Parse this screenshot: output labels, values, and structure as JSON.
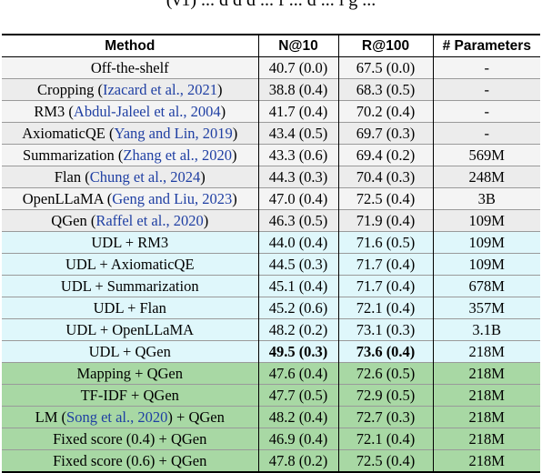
{
  "fragment": "(v1) ... d d d    ...    f       ...   d   ... l   g  ...",
  "table": {
    "headers": [
      "Method",
      "N@10",
      "R@100",
      "# Parameters"
    ],
    "rows": [
      {
        "group": "base",
        "method": "Off-the-shelf",
        "cite": "",
        "suffix": "",
        "n10": "40.7 (0.0)",
        "r100": "67.5 (0.0)",
        "params": "-"
      },
      {
        "group": "base",
        "method": "Cropping ",
        "cite": "Izacard et al., 2021",
        "suffix": "",
        "n10": "38.8 (0.4)",
        "r100": "68.3 (0.5)",
        "params": "-"
      },
      {
        "group": "base",
        "method": "RM3 ",
        "cite": "Abdul-Jaleel et al., 2004",
        "suffix": "",
        "n10": "41.7 (0.4)",
        "r100": "70.2 (0.4)",
        "params": "-"
      },
      {
        "group": "base",
        "method": "AxiomaticQE ",
        "cite": "Yang and Lin, 2019",
        "suffix": "",
        "n10": "43.4 (0.5)",
        "r100": "69.7 (0.3)",
        "params": "-"
      },
      {
        "group": "base",
        "method": "Summarization ",
        "cite": "Zhang et al., 2020",
        "suffix": "",
        "n10": "43.3 (0.6)",
        "r100": "69.4 (0.2)",
        "params": "569M"
      },
      {
        "group": "base",
        "method": "Flan ",
        "cite": "Chung et al., 2024",
        "suffix": "",
        "n10": "44.3 (0.3)",
        "r100": "70.4 (0.3)",
        "params": "248M"
      },
      {
        "group": "base",
        "method": "OpenLLaMA ",
        "cite": "Geng and Liu, 2023",
        "suffix": "",
        "n10": "47.0 (0.4)",
        "r100": "72.5 (0.4)",
        "params": "3B"
      },
      {
        "group": "base",
        "method": "QGen ",
        "cite": "Raffel et al., 2020",
        "suffix": "",
        "n10": "46.3 (0.5)",
        "r100": "71.9 (0.4)",
        "params": "109M"
      },
      {
        "group": "udl",
        "method": "UDL + RM3",
        "cite": "",
        "suffix": "",
        "n10": "44.0 (0.4)",
        "r100": "71.6 (0.5)",
        "params": "109M"
      },
      {
        "group": "udl",
        "method": "UDL + AxiomaticQE",
        "cite": "",
        "suffix": "",
        "n10": "44.5 (0.3)",
        "r100": "71.7 (0.4)",
        "params": "109M"
      },
      {
        "group": "udl",
        "method": "UDL + Summarization",
        "cite": "",
        "suffix": "",
        "n10": "45.1 (0.4)",
        "r100": "71.7 (0.4)",
        "params": "678M"
      },
      {
        "group": "udl",
        "method": "UDL + Flan",
        "cite": "",
        "suffix": "",
        "n10": "45.2 (0.6)",
        "r100": "72.1 (0.4)",
        "params": "357M"
      },
      {
        "group": "udl",
        "method": "UDL + OpenLLaMA",
        "cite": "",
        "suffix": "",
        "n10": "48.2 (0.2)",
        "r100": "73.1 (0.3)",
        "params": "3.1B"
      },
      {
        "group": "udl",
        "method": "UDL + QGen",
        "cite": "",
        "suffix": "",
        "n10": "49.5 (0.3)",
        "r100": "73.6 (0.4)",
        "params": "218M",
        "bold": true
      },
      {
        "group": "ablate",
        "method": "Mapping + QGen",
        "cite": "",
        "suffix": "",
        "n10": "47.6 (0.4)",
        "r100": "72.6 (0.5)",
        "params": "218M"
      },
      {
        "group": "ablate",
        "method": "TF-IDF + QGen",
        "cite": "",
        "suffix": "",
        "n10": "47.7 (0.5)",
        "r100": "72.9 (0.5)",
        "params": "218M"
      },
      {
        "group": "ablate",
        "method": "LM ",
        "cite": "Song et al., 2020",
        "suffix": " + QGen",
        "n10": "48.2 (0.4)",
        "r100": "72.7 (0.3)",
        "params": "218M"
      },
      {
        "group": "ablate",
        "method": "Fixed score (0.4) + QGen",
        "cite": "",
        "suffix": "",
        "n10": "46.9 (0.4)",
        "r100": "72.1 (0.4)",
        "params": "218M"
      },
      {
        "group": "ablate",
        "method": "Fixed score (0.6) + QGen",
        "cite": "",
        "suffix": "",
        "n10": "47.8 (0.2)",
        "r100": "72.5 (0.4)",
        "params": "218M"
      }
    ]
  }
}
